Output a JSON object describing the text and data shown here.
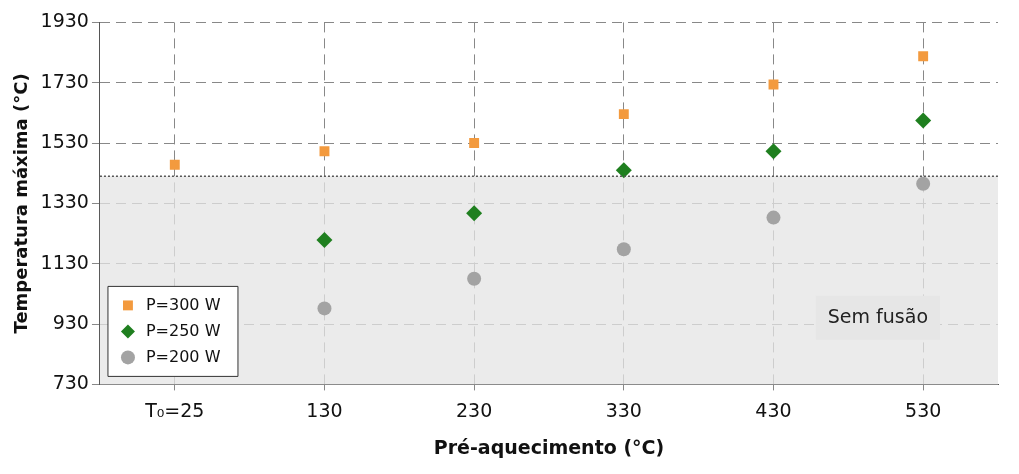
{
  "chart_data": {
    "type": "scatter",
    "xlabel": "Pré-aquecimento (°C)",
    "ylabel": "Temperatura máxima (°C)",
    "categories": [
      "T₀=25",
      "130",
      "230",
      "330",
      "430",
      "530"
    ],
    "series": [
      {
        "name": "P=300 W",
        "color": "#f39a3e",
        "marker": "square",
        "values": [
          1458,
          1503,
          1530,
          1626,
          1724,
          1818
        ]
      },
      {
        "name": "P=250 W",
        "color": "#1f7f1f",
        "marker": "diamond",
        "values": [
          null,
          1209,
          1297,
          1440,
          1503,
          1605
        ]
      },
      {
        "name": "P=200 W",
        "color": "#a3a3a3",
        "marker": "circle",
        "values": [
          null,
          982,
          1080,
          1178,
          1283,
          1395
        ]
      }
    ],
    "ylim": [
      730,
      1930
    ],
    "yticks": [
      730,
      930,
      1130,
      1330,
      1530,
      1730,
      1930
    ],
    "bands": [
      {
        "axis": "y",
        "from": 730,
        "to": 1420,
        "label": "Sem fusão",
        "color": "#e4e4e4"
      }
    ],
    "ref_lines": [
      {
        "axis": "y",
        "value": 1420,
        "line_style": "dotted",
        "color": "#555555"
      }
    ],
    "grid": true,
    "legend": "bottom left"
  }
}
